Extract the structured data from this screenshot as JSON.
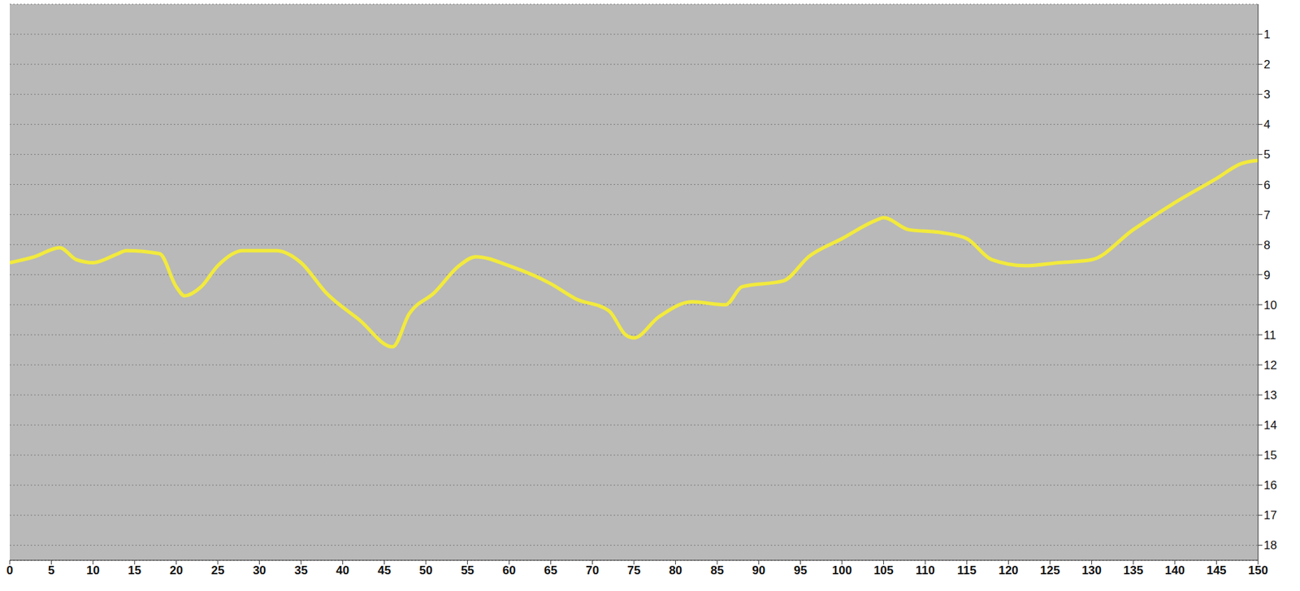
{
  "chart_data": {
    "type": "line",
    "x": [
      0,
      3,
      6,
      8,
      10,
      13,
      14,
      18,
      20,
      21,
      23,
      25,
      28,
      32,
      35,
      38,
      42,
      46,
      48,
      51,
      54,
      56,
      60,
      65,
      68,
      72,
      74,
      75,
      78,
      82,
      86,
      88,
      93,
      96,
      100,
      104,
      105,
      108,
      112,
      115,
      118,
      122,
      126,
      130,
      135,
      140,
      145,
      148,
      150
    ],
    "values": [
      8.6,
      8.4,
      8.1,
      8.5,
      8.6,
      8.3,
      8.2,
      8.3,
      9.4,
      9.7,
      9.4,
      8.7,
      8.2,
      8.2,
      8.6,
      9.6,
      10.5,
      11.4,
      10.3,
      9.6,
      8.7,
      8.4,
      8.7,
      9.3,
      9.8,
      10.2,
      11.0,
      11.1,
      10.4,
      9.9,
      10.0,
      9.4,
      9.2,
      8.4,
      7.8,
      7.2,
      7.1,
      7.5,
      7.6,
      7.8,
      8.5,
      8.7,
      8.6,
      8.5,
      7.5,
      6.6,
      5.8,
      5.3,
      5.2
    ],
    "color": "#f2ea3c",
    "xlim": [
      0,
      150
    ],
    "xticks": [
      0,
      5,
      10,
      15,
      20,
      25,
      30,
      35,
      40,
      45,
      50,
      55,
      60,
      65,
      70,
      75,
      80,
      85,
      90,
      95,
      100,
      105,
      110,
      115,
      120,
      125,
      130,
      135,
      140,
      145,
      150
    ],
    "ylim": [
      0,
      18.5
    ],
    "yticks": [
      1,
      2,
      3,
      4,
      5,
      6,
      7,
      8,
      9,
      10,
      11,
      12,
      13,
      14,
      15,
      16,
      17,
      18
    ],
    "grid": true
  }
}
